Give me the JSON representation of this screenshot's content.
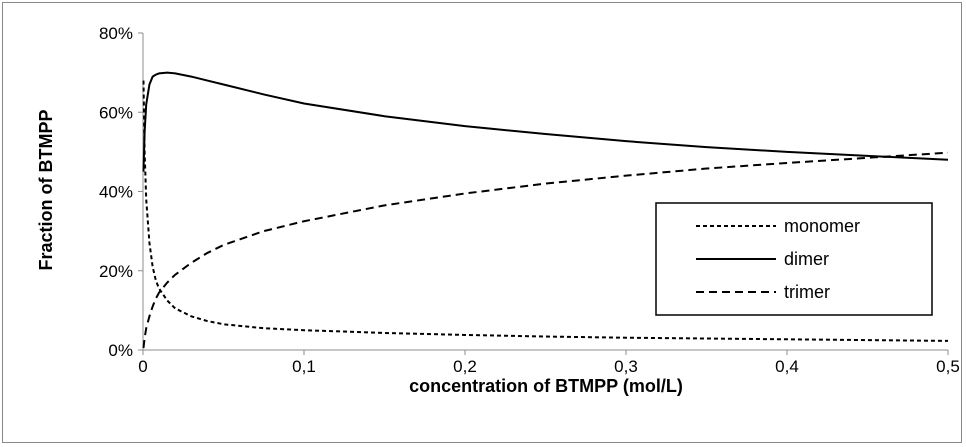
{
  "chart_data": {
    "type": "line",
    "title": "",
    "xlabel": "concentration of BTMPP (mol/L)",
    "ylabel": "Fraction of BTMPP",
    "xlim": [
      0,
      0.5
    ],
    "ylim": [
      0,
      0.8
    ],
    "x_ticks": [
      0,
      0.1,
      0.2,
      0.3,
      0.4,
      0.5
    ],
    "x_tick_labels": [
      "0",
      "0,1",
      "0,2",
      "0,3",
      "0,4",
      "0,5"
    ],
    "y_ticks": [
      0,
      0.2,
      0.4,
      0.6,
      0.8
    ],
    "y_tick_labels": [
      "0%",
      "20%",
      "40%",
      "60%",
      "80%"
    ],
    "grid": false,
    "legend_position": "right",
    "series": [
      {
        "name": "monomer",
        "line_style": "dotted-dash",
        "x": [
          0.0003,
          0.001,
          0.002,
          0.004,
          0.006,
          0.008,
          0.01,
          0.015,
          0.02,
          0.03,
          0.04,
          0.05,
          0.075,
          0.1,
          0.15,
          0.2,
          0.25,
          0.3,
          0.35,
          0.4,
          0.45,
          0.5
        ],
        "y": [
          0.68,
          0.5,
          0.38,
          0.27,
          0.21,
          0.175,
          0.155,
          0.125,
          0.105,
          0.085,
          0.073,
          0.065,
          0.055,
          0.05,
          0.043,
          0.038,
          0.034,
          0.031,
          0.029,
          0.027,
          0.025,
          0.023
        ]
      },
      {
        "name": "dimer",
        "line_style": "solid",
        "x": [
          0.0003,
          0.001,
          0.002,
          0.004,
          0.006,
          0.008,
          0.01,
          0.015,
          0.02,
          0.03,
          0.04,
          0.05,
          0.075,
          0.1,
          0.15,
          0.2,
          0.25,
          0.3,
          0.35,
          0.4,
          0.45,
          0.5
        ],
        "y": [
          0.45,
          0.55,
          0.62,
          0.67,
          0.69,
          0.695,
          0.698,
          0.7,
          0.698,
          0.69,
          0.68,
          0.67,
          0.645,
          0.622,
          0.59,
          0.565,
          0.545,
          0.527,
          0.512,
          0.5,
          0.49,
          0.48
        ]
      },
      {
        "name": "trimer",
        "line_style": "dashed",
        "x": [
          0.0003,
          0.001,
          0.002,
          0.004,
          0.006,
          0.008,
          0.01,
          0.015,
          0.02,
          0.03,
          0.04,
          0.05,
          0.075,
          0.1,
          0.15,
          0.2,
          0.25,
          0.3,
          0.35,
          0.4,
          0.45,
          0.5
        ],
        "y": [
          0.005,
          0.03,
          0.055,
          0.085,
          0.11,
          0.13,
          0.145,
          0.17,
          0.19,
          0.22,
          0.245,
          0.265,
          0.3,
          0.325,
          0.365,
          0.395,
          0.42,
          0.44,
          0.458,
          0.472,
          0.485,
          0.498
        ]
      }
    ]
  }
}
